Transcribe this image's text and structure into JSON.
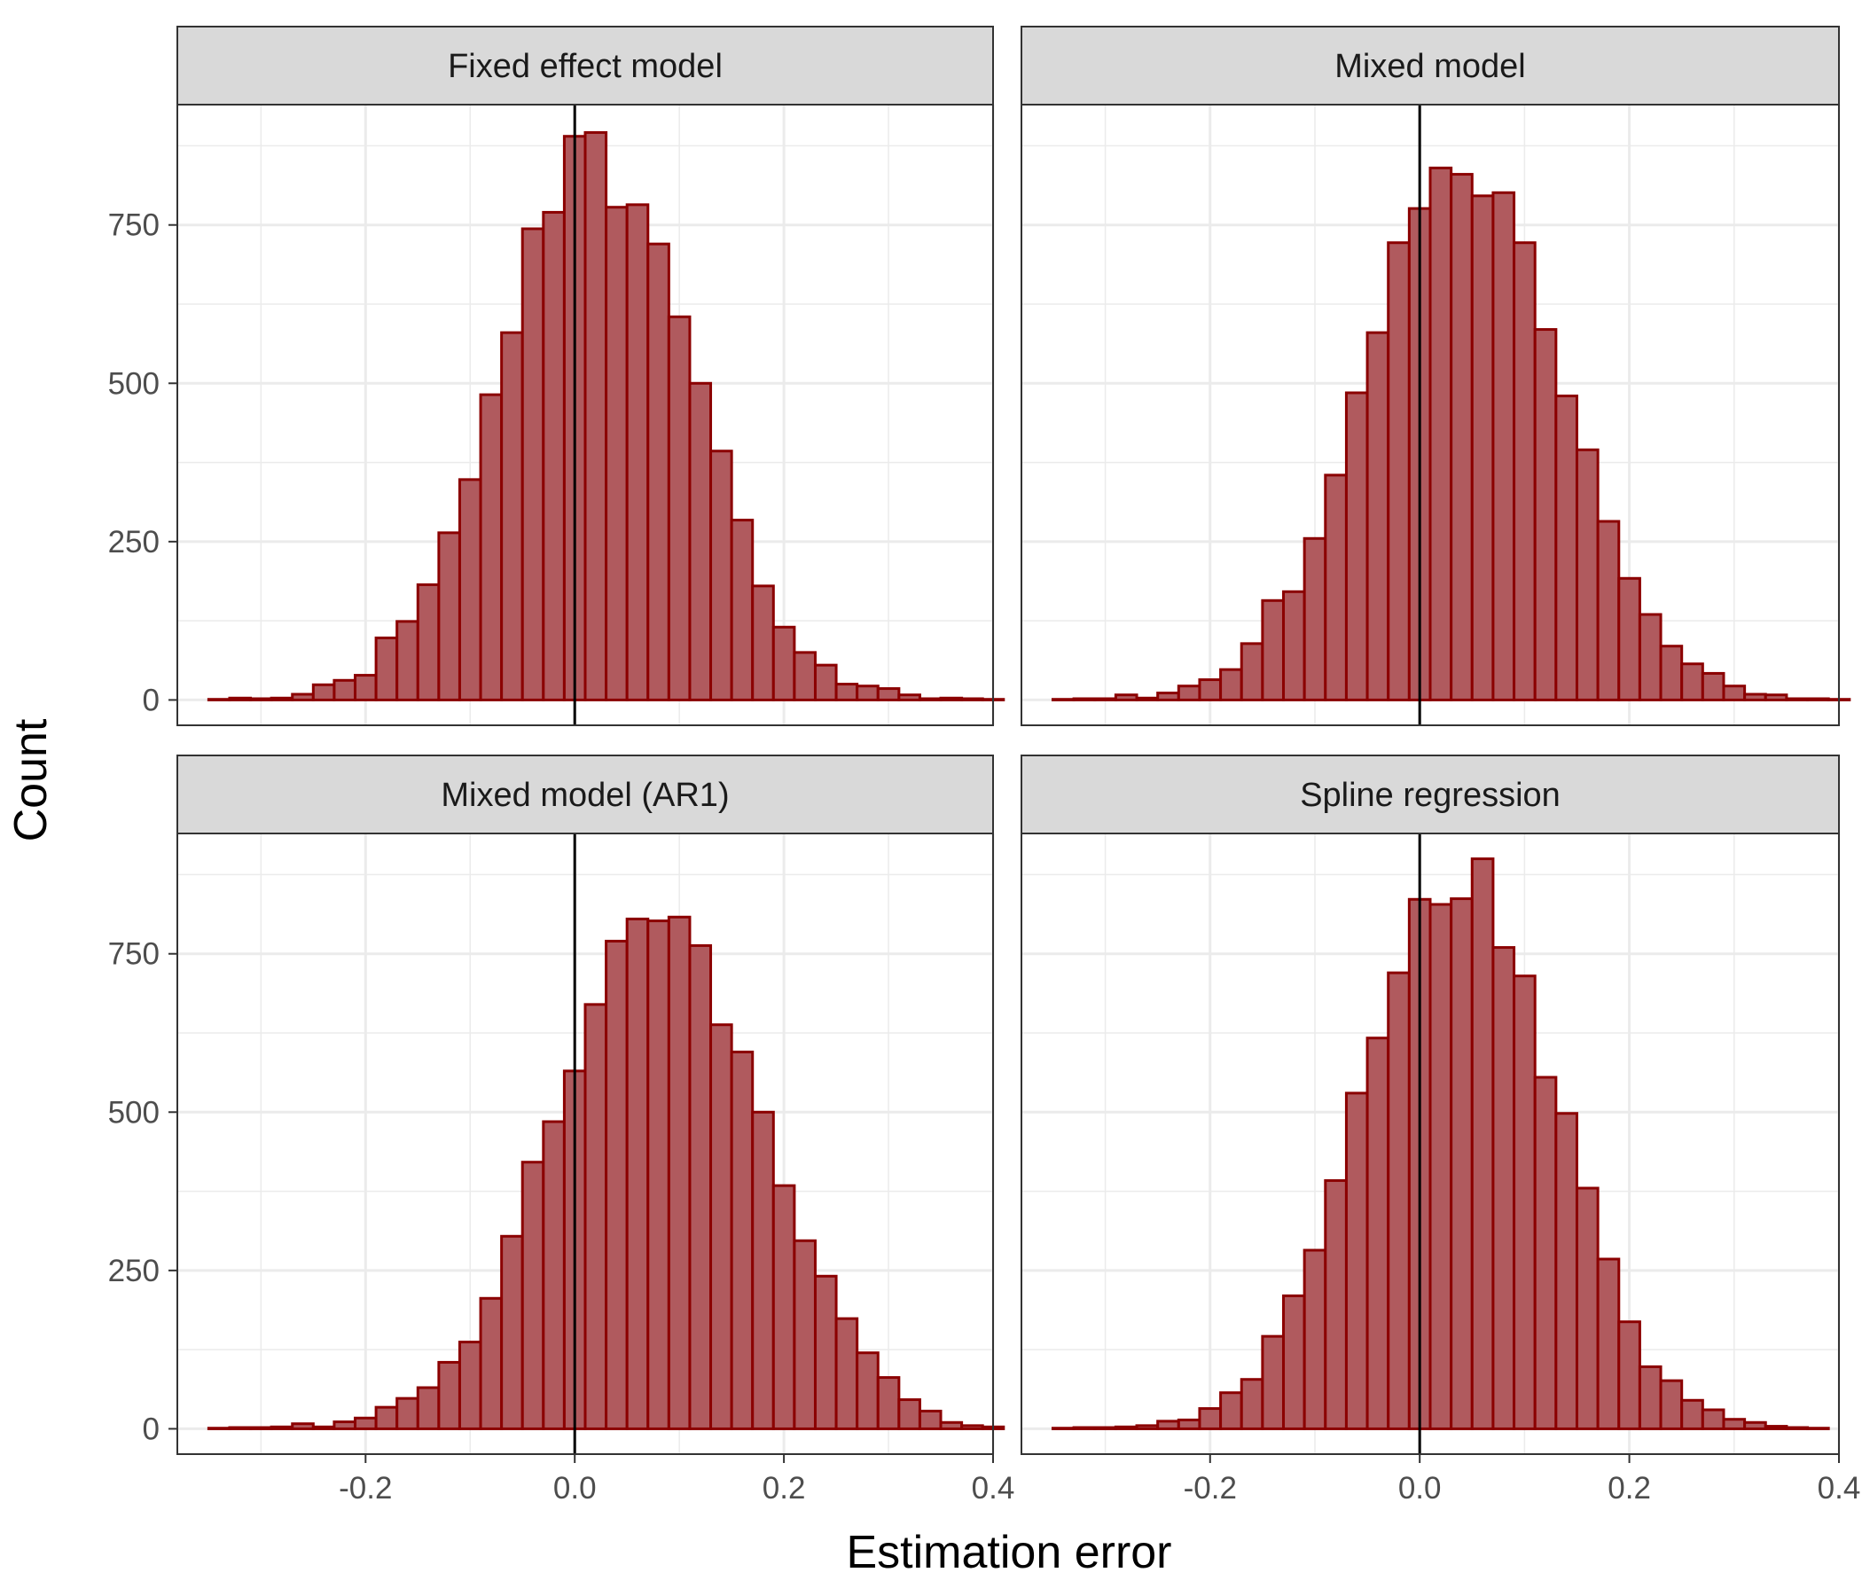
{
  "chart_data": {
    "type": "bar",
    "subtype": "histogram-facets",
    "xlabel": "Estimation error",
    "ylabel": "Count",
    "xlim": [
      -0.38,
      0.4
    ],
    "ylim": [
      -40,
      940
    ],
    "x_ticks": [
      {
        "value": -0.2,
        "label": "-0.2"
      },
      {
        "value": 0.0,
        "label": "0.0"
      },
      {
        "value": 0.2,
        "label": "0.2"
      },
      {
        "value": 0.4,
        "label": "0.4"
      }
    ],
    "y_ticks": [
      {
        "value": 0,
        "label": "0"
      },
      {
        "value": 250,
        "label": "250"
      },
      {
        "value": 500,
        "label": "500"
      },
      {
        "value": 750,
        "label": "750"
      }
    ],
    "reference_line_x": 0,
    "grid": true,
    "colors": {
      "bar_fill": "#b05a5e",
      "bar_stroke": "#8b0000",
      "strip_fill": "#d9d9d9",
      "grid": "#ebebeb",
      "frame": "#333333"
    },
    "bin_start": -0.35,
    "bin_width": 0.02,
    "panels": [
      {
        "title": "Fixed effect model",
        "counts": [
          1,
          3,
          2,
          3,
          9,
          24,
          31,
          39,
          98,
          124,
          182,
          264,
          348,
          482,
          580,
          744,
          770,
          890,
          896,
          778,
          782,
          720,
          605,
          500,
          393,
          284,
          180,
          115,
          75,
          55,
          25,
          22,
          18,
          8,
          2,
          3,
          2,
          1
        ]
      },
      {
        "title": "Mixed model",
        "counts": [
          1,
          2,
          2,
          8,
          3,
          11,
          22,
          32,
          48,
          89,
          157,
          171,
          255,
          355,
          485,
          580,
          722,
          776,
          840,
          830,
          796,
          801,
          722,
          585,
          480,
          395,
          282,
          192,
          135,
          85,
          57,
          42,
          22,
          9,
          8,
          2,
          2,
          1
        ]
      },
      {
        "title": "Mixed model (AR1)",
        "counts": [
          1,
          2,
          2,
          3,
          8,
          3,
          11,
          17,
          34,
          48,
          65,
          105,
          137,
          206,
          304,
          421,
          485,
          565,
          670,
          770,
          805,
          802,
          808,
          763,
          638,
          595,
          500,
          384,
          297,
          241,
          174,
          120,
          81,
          46,
          28,
          10,
          5,
          3
        ]
      },
      {
        "title": "Spline regression",
        "counts": [
          1,
          2,
          2,
          3,
          5,
          12,
          14,
          32,
          57,
          78,
          146,
          210,
          282,
          392,
          530,
          617,
          720,
          836,
          828,
          837,
          900,
          760,
          715,
          555,
          498,
          380,
          268,
          169,
          98,
          76,
          45,
          30,
          15,
          10,
          4,
          2,
          1
        ]
      }
    ]
  }
}
